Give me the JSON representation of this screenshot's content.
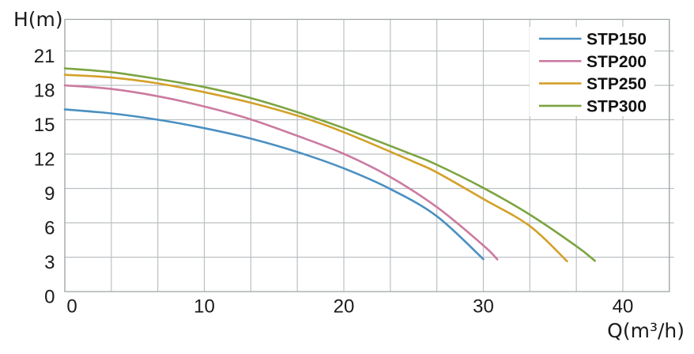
{
  "chart_data": {
    "type": "line",
    "title": "",
    "xlabel": "Q(m³/h)",
    "ylabel": "H(m)",
    "xlim": [
      0,
      43.33
    ],
    "ylim": [
      0,
      23.76
    ],
    "x_tick_labels": [
      0,
      10,
      20,
      30,
      40
    ],
    "y_tick_labels": [
      0,
      3,
      6,
      9,
      12,
      15,
      18,
      21
    ],
    "x_grid_step": 3.3333,
    "y_grid_step": 3,
    "grid": true,
    "legend_position": "top-right",
    "series": [
      {
        "name": "STP150",
        "color": "#4a90c2",
        "points": [
          [
            0,
            15.9
          ],
          [
            3.33,
            15.55
          ],
          [
            6.67,
            15.0
          ],
          [
            10,
            14.26
          ],
          [
            13.33,
            13.35
          ],
          [
            16.67,
            12.18
          ],
          [
            20,
            10.75
          ],
          [
            23.33,
            8.95
          ],
          [
            26.67,
            6.57
          ],
          [
            30,
            2.83
          ]
        ]
      },
      {
        "name": "STP200",
        "color": "#cc7aa0",
        "points": [
          [
            0,
            18.0
          ],
          [
            3.33,
            17.68
          ],
          [
            6.67,
            17.05
          ],
          [
            10,
            16.15
          ],
          [
            13.33,
            15.03
          ],
          [
            16.67,
            13.59
          ],
          [
            20,
            12.02
          ],
          [
            23.33,
            10.0
          ],
          [
            26.67,
            7.37
          ],
          [
            30,
            4.03
          ],
          [
            31,
            2.81
          ]
        ]
      },
      {
        "name": "STP250",
        "color": "#d3a129",
        "points": [
          [
            0,
            18.92
          ],
          [
            3.33,
            18.68
          ],
          [
            6.67,
            18.17
          ],
          [
            10,
            17.4
          ],
          [
            13.33,
            16.48
          ],
          [
            16.67,
            15.35
          ],
          [
            20,
            13.91
          ],
          [
            25,
            11.33
          ],
          [
            26.67,
            10.4
          ],
          [
            30,
            8.08
          ],
          [
            33.33,
            5.72
          ],
          [
            36,
            2.65
          ]
        ]
      },
      {
        "name": "STP300",
        "color": "#7ca441",
        "points": [
          [
            0,
            19.48
          ],
          [
            3.33,
            19.15
          ],
          [
            6.67,
            18.55
          ],
          [
            10,
            17.85
          ],
          [
            13.33,
            16.89
          ],
          [
            16.67,
            15.66
          ],
          [
            20,
            14.26
          ],
          [
            25,
            11.92
          ],
          [
            26.67,
            11.07
          ],
          [
            30,
            9.05
          ],
          [
            33.33,
            6.72
          ],
          [
            36.67,
            3.96
          ],
          [
            38,
            2.68
          ]
        ]
      }
    ]
  },
  "colors": {
    "grid": "#bcc0c2",
    "frame": "#a2a6a8",
    "text": "#1b1b1b",
    "legend_text": "#111111",
    "background": "#ffffff"
  }
}
